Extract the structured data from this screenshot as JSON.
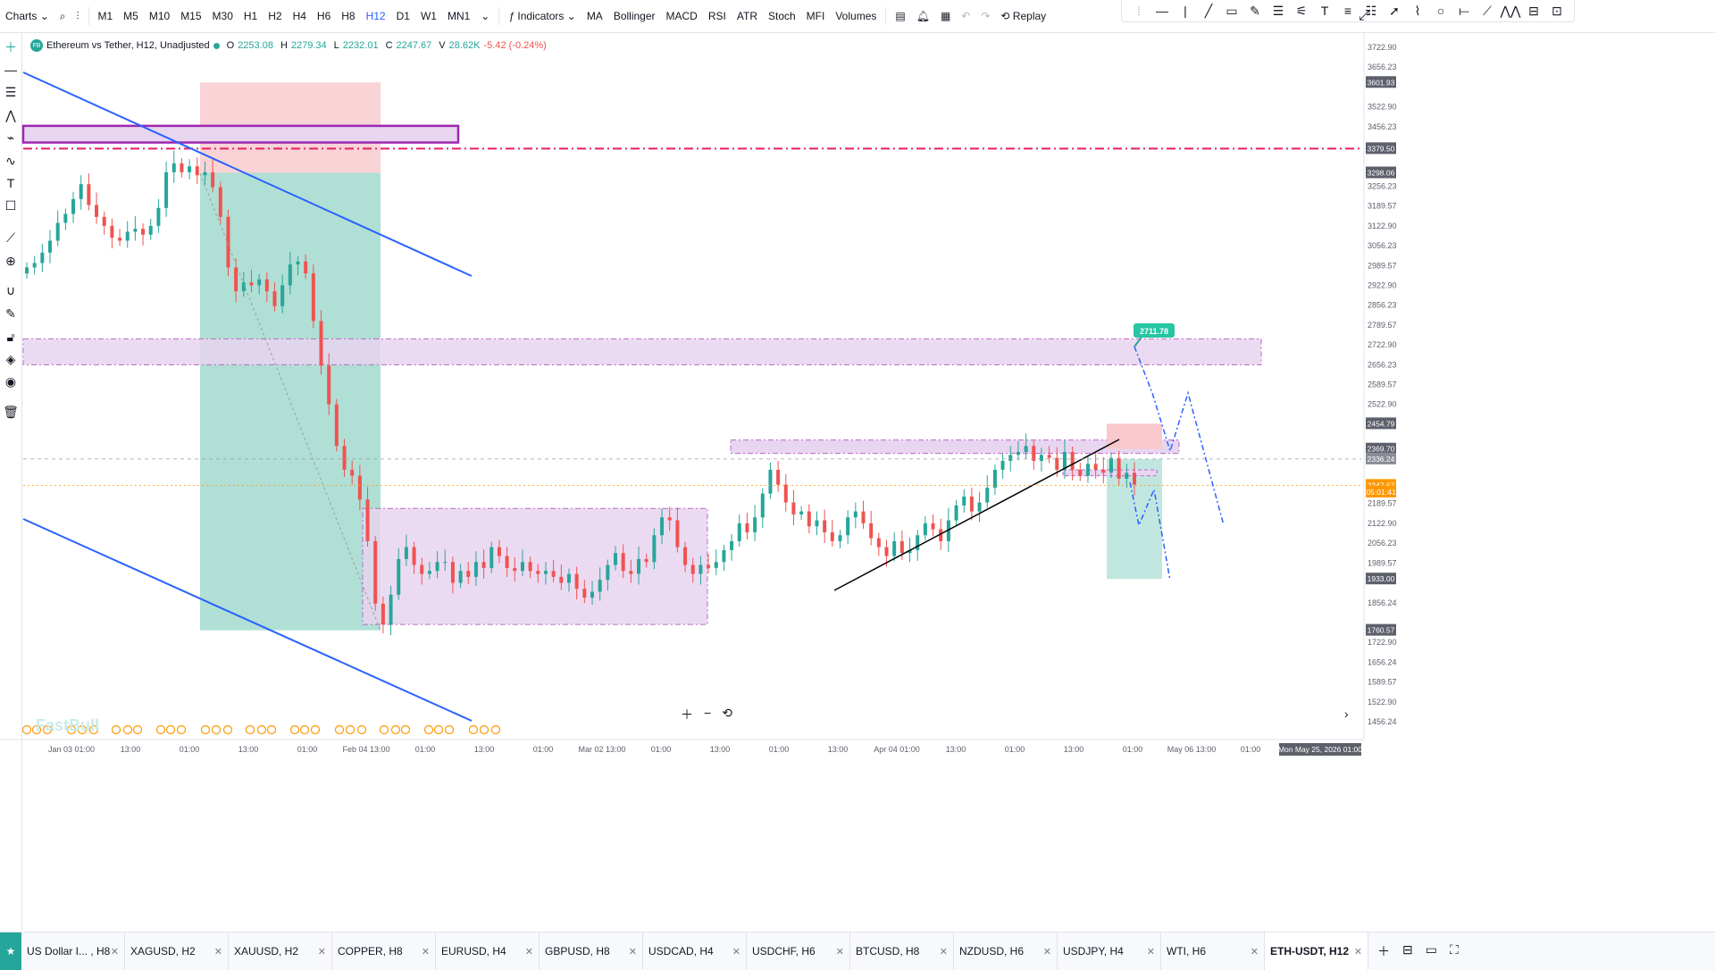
{
  "topbar": {
    "charts_label": "Charts",
    "timeframes": [
      "M1",
      "M5",
      "M10",
      "M15",
      "M30",
      "H1",
      "H2",
      "H4",
      "H6",
      "H8",
      "H12",
      "D1",
      "W1",
      "MN1"
    ],
    "active_timeframe": "H12",
    "indicators_label": "Indicators",
    "indicator_items": [
      "MA",
      "Bollinger",
      "MACD",
      "RSI",
      "ATR",
      "Stoch",
      "MFI",
      "Volumes"
    ],
    "replay_label": "Replay"
  },
  "legend": {
    "badge": "FB",
    "title": "Ethereum vs Tether, H12, Unadjusted",
    "open_label": "O",
    "open": "2253.08",
    "high_label": "H",
    "high": "2279.34",
    "low_label": "L",
    "low": "2232.01",
    "close_label": "C",
    "close": "2247.67",
    "vol_label": "V",
    "vol": "28.62K",
    "change": "-5.42 (-0.24%)"
  },
  "price_axis": {
    "ticks": [
      "3722.90",
      "3656.23",
      "3522.90",
      "3456.23",
      "3256.23",
      "3189.57",
      "3122.90",
      "3056.23",
      "2989.57",
      "2922.90",
      "2856.23",
      "2789.57",
      "2722.90",
      "2656.23",
      "2589.57",
      "2522.90",
      "2189.57",
      "2122.90",
      "2056.23",
      "1989.57",
      "1856.24",
      "1722.90",
      "1656.24",
      "1589.57",
      "1522.90",
      "1456.24"
    ],
    "labels": [
      {
        "text": "3601.93",
        "price": 3601.93,
        "color": "#5d606b"
      },
      {
        "text": "3379.50",
        "price": 3379.5,
        "color": "#5d606b"
      },
      {
        "text": "3298.06",
        "price": 3298.06,
        "color": "#5d606b"
      },
      {
        "text": "2454.79",
        "price": 2454.79,
        "color": "#5d606b"
      },
      {
        "text": "2369.70",
        "price": 2369.7,
        "color": "#5d606b"
      },
      {
        "text": "2336.24",
        "price": 2336.24,
        "color": "#8a8d97"
      },
      {
        "text": "2247.67",
        "price": 2247.67,
        "color": "#ff9800"
      },
      {
        "text": "05:01:41",
        "price": 2225,
        "color": "#ff9800"
      },
      {
        "text": "1933.00",
        "price": 1933.0,
        "color": "#5d606b"
      },
      {
        "text": "1760.57",
        "price": 1760.57,
        "color": "#5d606b"
      }
    ],
    "target_label": "2711.78"
  },
  "time_axis": {
    "ticks": [
      "Jan 03 01:00",
      "13:00",
      "01:00",
      "13:00",
      "01:00",
      "Feb 04 13:00",
      "01:00",
      "13:00",
      "01:00",
      "Mar 02 13:00",
      "01:00",
      "13:00",
      "01:00",
      "13:00",
      "Apr 04 01:00",
      "13:00",
      "01:00",
      "13:00",
      "01:00",
      "May 06 13:00",
      "01:00"
    ],
    "crosshair_label": "Mon May 25, 2026 01:00"
  },
  "watermark": "FastBull",
  "tabs": [
    {
      "label": "US Dollar I... , H8"
    },
    {
      "label": "XAGUSD, H2"
    },
    {
      "label": "XAUUSD, H2"
    },
    {
      "label": "COPPER, H8"
    },
    {
      "label": "EURUSD, H4"
    },
    {
      "label": "GBPUSD, H8"
    },
    {
      "label": "USDCAD, H4"
    },
    {
      "label": "USDCHF, H6"
    },
    {
      "label": "BTCUSD, H8"
    },
    {
      "label": "NZDUSD, H6"
    },
    {
      "label": "USDJPY, H4"
    },
    {
      "label": "WTI, H6"
    },
    {
      "label": "ETH-USDT, H12"
    }
  ],
  "colors": {
    "up": "#26a69a",
    "down": "#ef5350",
    "zone_fill": "#e8d5f0",
    "zone_border": "#9c27b0",
    "resistance_line": "#e91e63",
    "trendline": "#2962ff",
    "stop_fill": "#f8c8cc",
    "target_fill": "#a7dcd2"
  },
  "chart_data": {
    "type": "candlestick",
    "title": "Ethereum vs Tether, H12, Unadjusted",
    "ylim": [
      1388,
      3760
    ],
    "current_price": 2247.67,
    "resistance": 3379.5,
    "target": 2711.78,
    "closes": [
      2980,
      2995,
      3030,
      3070,
      3130,
      3160,
      3210,
      3260,
      3190,
      3150,
      3120,
      3080,
      3070,
      3100,
      3110,
      3090,
      3120,
      3180,
      3300,
      3330,
      3300,
      3320,
      3290,
      3300,
      3250,
      3150,
      2980,
      2900,
      2930,
      2920,
      2940,
      2900,
      2850,
      2920,
      2990,
      3000,
      2960,
      2800,
      2650,
      2520,
      2380,
      2300,
      2280,
      2200,
      2060,
      1850,
      1780,
      1880,
      2000,
      2040,
      1980,
      1950,
      1960,
      1990,
      1990,
      1920,
      1960,
      1940,
      1990,
      1970,
      2040,
      2010,
      1970,
      1960,
      1990,
      1960,
      1950,
      1960,
      1940,
      1920,
      1950,
      1900,
      1870,
      1890,
      1930,
      1980,
      2020,
      1960,
      1950,
      2000,
      1990,
      2080,
      2140,
      2130,
      2040,
      1980,
      1950,
      1980,
      1970,
      1990,
      2030,
      2060,
      2120,
      2090,
      2140,
      2220,
      2300,
      2250,
      2190,
      2150,
      2160,
      2110,
      2130,
      2090,
      2060,
      2080,
      2140,
      2160,
      2120,
      2070,
      2040,
      2010,
      2060,
      2020,
      2030,
      2080,
      2120,
      2100,
      2060,
      2130,
      2180,
      2210,
      2160,
      2190,
      2240,
      2300,
      2330,
      2350,
      2360,
      2380,
      2330,
      2350,
      2340,
      2300,
      2360,
      2300,
      2280,
      2320,
      2300,
      2290,
      2340,
      2270,
      2290,
      2250
    ]
  }
}
